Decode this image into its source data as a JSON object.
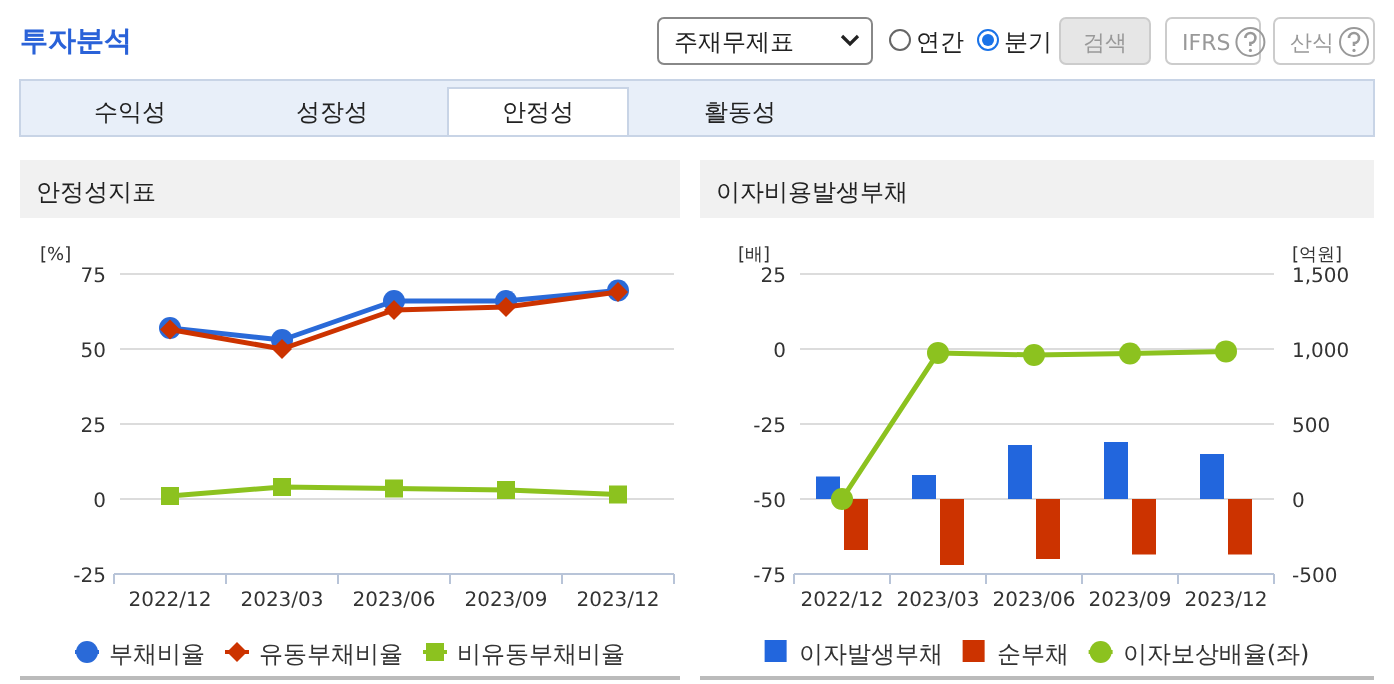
{
  "chart_data": [
    {
      "type": "other",
      "title": "투자분석",
      "annotations": [
        "주재무제표",
        "연간",
        "분기",
        "검색",
        "IFRS",
        "산식",
        "수익성",
        "성장성",
        "안정성",
        "활동성"
      ]
    },
    {
      "type": "line",
      "title": "안정성지표",
      "ylabel": "[%]",
      "categories": [
        "2022/12",
        "2023/03",
        "2023/06",
        "2023/09",
        "2023/12"
      ],
      "ylim": [
        -25,
        75
      ],
      "yticks": [
        -25,
        0,
        25,
        50,
        75
      ],
      "grid": "y",
      "legend": "bottom",
      "series": [
        {
          "name": "부채비율",
          "color": "#2a6ad8",
          "marker": "circle",
          "values": [
            57,
            53,
            66,
            66,
            69.5
          ]
        },
        {
          "name": "유동부채비율",
          "color": "#cc3300",
          "marker": "diamond",
          "values": [
            56.5,
            50,
            63,
            64,
            69
          ]
        },
        {
          "name": "비유동부채비율",
          "color": "#8cc21f",
          "marker": "square",
          "values": [
            1,
            4,
            3.5,
            3,
            1.5
          ]
        }
      ]
    },
    {
      "type": "bar",
      "title": "이자비용발생부채",
      "ylabel": "[배]",
      "y2label": "[억원]",
      "categories": [
        "2022/12",
        "2023/03",
        "2023/06",
        "2023/09",
        "2023/12"
      ],
      "ylim": [
        -75,
        25
      ],
      "yticks": [
        -75,
        -50,
        -25,
        0,
        25
      ],
      "y2lim": [
        -500,
        1500
      ],
      "y2ticks": [
        -500,
        0,
        500,
        {
          "value": 1000,
          "label": "1,000"
        },
        {
          "value": 1500,
          "label": "1,500"
        }
      ],
      "grid": "y",
      "legend": "bottom",
      "series": [
        {
          "name": "이자발생부채",
          "color": "#2266dd",
          "axis": "y2",
          "values": [
            150,
            160,
            360,
            380,
            300
          ]
        },
        {
          "name": "순부채",
          "color": "#cc3300",
          "axis": "y2",
          "values": [
            -340,
            -440,
            -400,
            -370,
            -370
          ]
        },
        {
          "name": "이자보상배율(좌)",
          "type": "line",
          "color": "#8cc21f",
          "marker": "circle",
          "axis": "y",
          "values": [
            -50,
            -1.3,
            -2,
            -1.5,
            -0.8
          ]
        }
      ]
    }
  ]
}
